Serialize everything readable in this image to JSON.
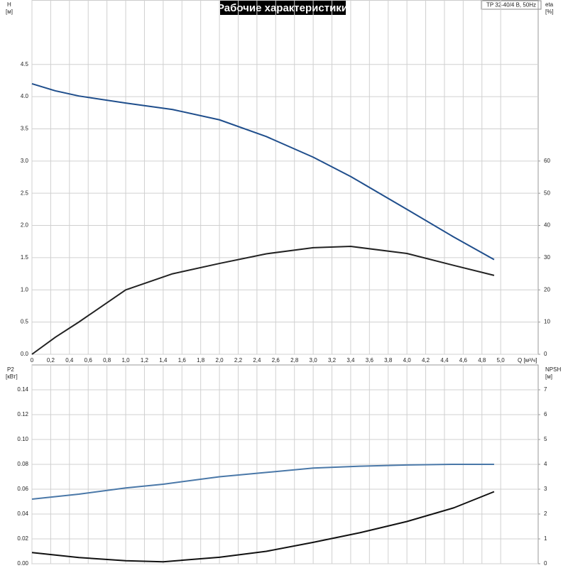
{
  "chart_data": [
    {
      "type": "line",
      "title": "Рабочие характеристики",
      "pump_label": "TP 32-40/4 B, 50Hz",
      "ylabel": "H",
      "yunit": "[м]",
      "y2label": "eta",
      "y2unit": "[%]",
      "xlabel": "Q [м³/ч]",
      "grid": true,
      "xlim": [
        0,
        5.4
      ],
      "xticks": [
        0,
        {
          "value": 0.2,
          "label": "0,2"
        },
        {
          "value": 0.4,
          "label": "0,4"
        },
        {
          "value": 0.6,
          "label": "0,6"
        },
        {
          "value": 0.8,
          "label": "0,8"
        },
        {
          "value": 1.0,
          "label": "1,0"
        },
        {
          "value": 1.2,
          "label": "1,2"
        },
        {
          "value": 1.4,
          "label": "1,4"
        },
        {
          "value": 1.6,
          "label": "1,6"
        },
        {
          "value": 1.8,
          "label": "1,8"
        },
        {
          "value": 2.0,
          "label": "2,0"
        },
        {
          "value": 2.2,
          "label": "2,2"
        },
        {
          "value": 2.4,
          "label": "2,4"
        },
        {
          "value": 2.6,
          "label": "2,6"
        },
        {
          "value": 2.8,
          "label": "2,8"
        },
        {
          "value": 3.0,
          "label": "3,0"
        },
        {
          "value": 3.2,
          "label": "3,2"
        },
        {
          "value": 3.4,
          "label": "3,4"
        },
        {
          "value": 3.6,
          "label": "3,6"
        },
        {
          "value": 3.8,
          "label": "3,8"
        },
        {
          "value": 4.0,
          "label": "4,0"
        },
        {
          "value": 4.2,
          "label": "4,2"
        },
        {
          "value": 4.4,
          "label": "4,4"
        },
        {
          "value": 4.6,
          "label": "4,6"
        },
        {
          "value": 4.8,
          "label": "4,8"
        },
        {
          "value": 5.0,
          "label": "5,0"
        }
      ],
      "ylim": [
        0,
        5.5
      ],
      "yticks": [
        {
          "value": 0,
          "label": "0.0"
        },
        0.5,
        {
          "value": 1,
          "label": "1.0"
        },
        1.5,
        {
          "value": 2,
          "label": "2.0"
        },
        2.5,
        {
          "value": 3,
          "label": "3.0"
        },
        3.5,
        {
          "value": 4,
          "label": "4.0"
        },
        4.5
      ],
      "y2lim": [
        0,
        110
      ],
      "y2ticks": [
        0,
        10,
        20,
        30,
        40,
        50,
        60
      ],
      "x": [
        0,
        0.25,
        0.5,
        1.0,
        1.5,
        2.0,
        2.5,
        3.0,
        3.4,
        4.0,
        4.5,
        4.93
      ],
      "series": [
        {
          "color": "#1f4e8c",
          "values": [
            4.2,
            4.09,
            4.01,
            3.9,
            3.8,
            3.64,
            3.38,
            3.06,
            2.76,
            2.25,
            1.82,
            1.47
          ]
        },
        {
          "color": "#222222",
          "axis": "y2",
          "values": [
            0,
            5.3,
            10,
            20,
            25,
            28.2,
            31.2,
            33.1,
            33.5,
            31.3,
            27.6,
            24.5
          ]
        }
      ]
    },
    {
      "type": "line",
      "ylabel": "P2",
      "yunit": "[кВт]",
      "y2label": "NPSH",
      "y2unit": "[м]",
      "grid": true,
      "xlim": [
        0,
        5.4
      ],
      "ylim": [
        0,
        0.16
      ],
      "yticks": [
        {
          "value": 0,
          "label": "0.00"
        },
        {
          "value": 0.02,
          "label": "0.02"
        },
        {
          "value": 0.04,
          "label": "0.04"
        },
        {
          "value": 0.06,
          "label": "0.06"
        },
        {
          "value": 0.08,
          "label": "0.08"
        },
        {
          "value": 0.1,
          "label": "0.10"
        },
        {
          "value": 0.12,
          "label": "0.12"
        },
        {
          "value": 0.14,
          "label": "0.14"
        }
      ],
      "y2lim": [
        0,
        8
      ],
      "y2ticks": [
        0,
        1,
        2,
        3,
        4,
        5,
        6,
        7
      ],
      "x": [
        0,
        0.25,
        0.5,
        1.0,
        1.4,
        2.0,
        2.5,
        3.0,
        3.5,
        4.0,
        4.5,
        4.93
      ],
      "series": [
        {
          "color": "#4a78a8",
          "values": [
            0.052,
            0.054,
            0.056,
            0.061,
            0.064,
            0.07,
            0.0735,
            0.077,
            0.0785,
            0.0795,
            0.08,
            0.08
          ]
        },
        {
          "color": "#111111",
          "axis": "y2",
          "values": [
            0.45,
            0.35,
            0.25,
            0.12,
            0.08,
            0.26,
            0.5,
            0.86,
            1.25,
            1.7,
            2.25,
            2.9
          ]
        }
      ]
    }
  ]
}
